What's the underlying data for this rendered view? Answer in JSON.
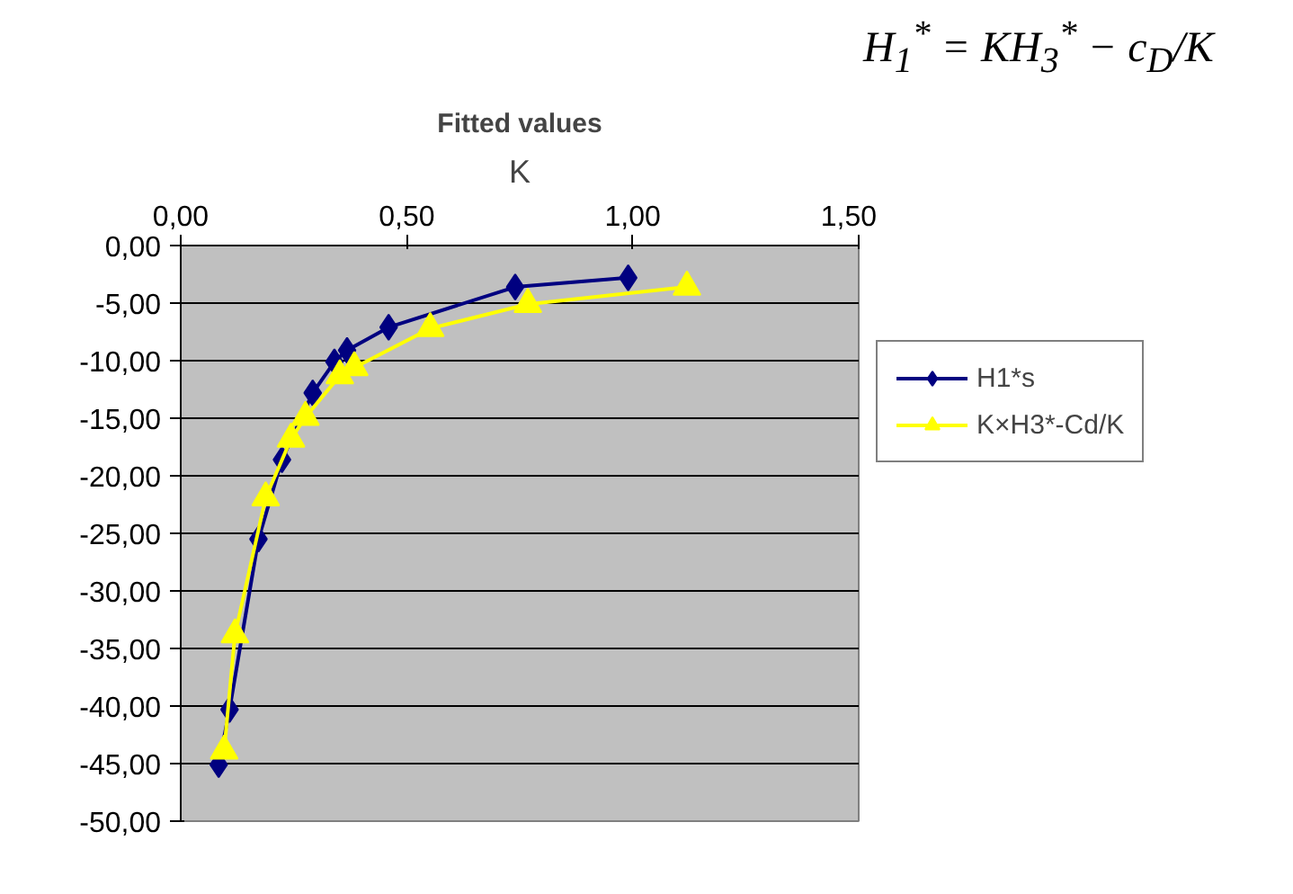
{
  "chart_data": {
    "type": "line",
    "title": "Fitted values",
    "xlabel": "K",
    "annotations": [
      "H$_{1}$$^{*}$ = KH$_{3}$$^{*}$ − c$_{D}$/K"
    ],
    "xlim": [
      0,
      1.5
    ],
    "ylim": [
      -50,
      0
    ],
    "xticks": [
      {
        "value": 0,
        "label": "0,00"
      },
      {
        "value": 0.5,
        "label": "0,50"
      },
      {
        "value": 1,
        "label": "1,00"
      },
      {
        "value": 1.5,
        "label": "1,50"
      }
    ],
    "yticks": [
      {
        "value": 0,
        "label": "0,00"
      },
      {
        "value": -5,
        "label": "-5,00"
      },
      {
        "value": -10,
        "label": "-10,00"
      },
      {
        "value": -15,
        "label": "-15,00"
      },
      {
        "value": -20,
        "label": "-20,00"
      },
      {
        "value": -25,
        "label": "-25,00"
      },
      {
        "value": -30,
        "label": "-30,00"
      },
      {
        "value": -35,
        "label": "-35,00"
      },
      {
        "value": -40,
        "label": "-40,00"
      },
      {
        "value": -45,
        "label": "-45,00"
      },
      {
        "value": -50,
        "label": "-50,00"
      }
    ],
    "grid": "y",
    "legend": "right",
    "series": [
      {
        "name": "H1*s",
        "color": "#000080",
        "marker": "diamond",
        "x": [
          0.084,
          0.108,
          0.172,
          0.224,
          0.292,
          0.34,
          0.368,
          0.46,
          0.74,
          0.99
        ],
        "values": [
          -45.1,
          -40.3,
          -25.5,
          -18.6,
          -12.8,
          -10.1,
          -9.1,
          -7.1,
          -3.6,
          -2.8
        ]
      },
      {
        "name": "K×H3*-Cd/K",
        "color": "#ffff00",
        "marker": "triangle",
        "x": [
          0.096,
          0.12,
          0.188,
          0.244,
          0.276,
          0.352,
          0.384,
          0.552,
          0.768,
          1.12
        ],
        "values": [
          -43.9,
          -33.8,
          -21.9,
          -16.8,
          -14.9,
          -11.3,
          -10.6,
          -7.2,
          -5.1,
          -3.6
        ]
      }
    ]
  }
}
